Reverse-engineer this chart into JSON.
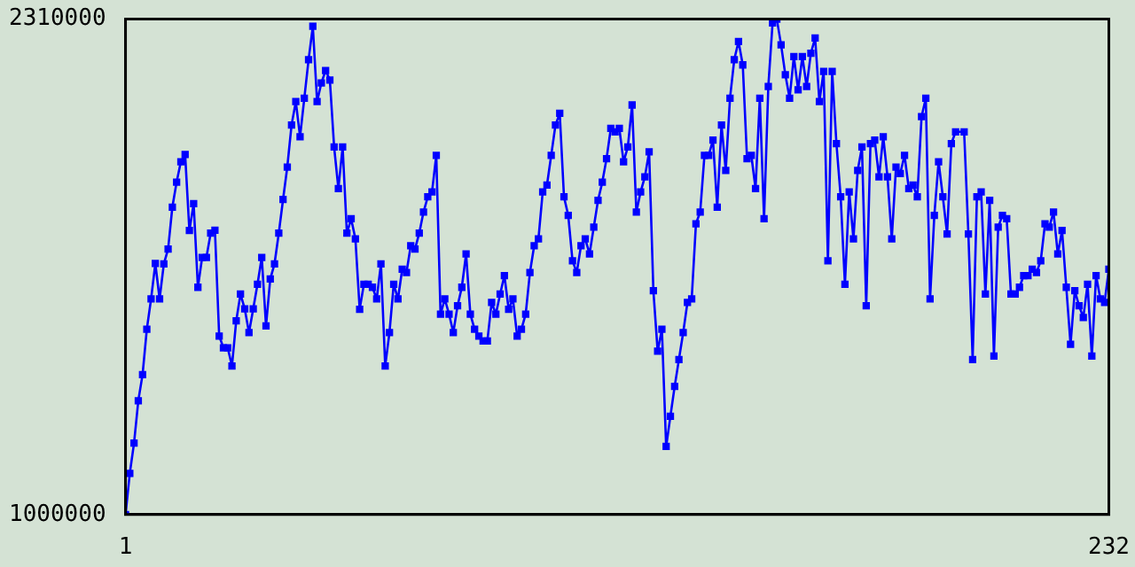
{
  "chart_data": {
    "type": "line",
    "marker": "square",
    "grid": false,
    "legend": false,
    "xlim": [
      1,
      232
    ],
    "xticks": [
      1,
      232
    ],
    "ylim": [
      1000000,
      2310000
    ],
    "yticks": [
      1000000,
      2310000
    ],
    "series": [
      {
        "color": "#0000ff",
        "x": [
          1,
          2,
          3,
          4,
          5,
          6,
          7,
          8,
          9,
          10,
          11,
          12,
          13,
          14,
          15,
          16,
          17,
          18,
          19,
          20,
          21,
          22,
          23,
          24,
          25,
          26,
          27,
          28,
          29,
          30,
          31,
          32,
          33,
          34,
          35,
          36,
          37,
          38,
          39,
          40,
          41,
          42,
          43,
          44,
          45,
          46,
          47,
          48,
          49,
          50,
          51,
          52,
          53,
          54,
          55,
          56,
          57,
          58,
          59,
          60,
          61,
          62,
          63,
          64,
          65,
          66,
          67,
          68,
          69,
          70,
          71,
          72,
          73,
          74,
          75,
          76,
          77,
          78,
          79,
          80,
          81,
          82,
          83,
          84,
          85,
          86,
          87,
          88,
          89,
          90,
          91,
          92,
          93,
          94,
          95,
          96,
          97,
          98,
          99,
          100,
          101,
          102,
          103,
          104,
          105,
          106,
          107,
          108,
          109,
          110,
          111,
          112,
          113,
          114,
          115,
          116,
          117,
          118,
          119,
          120,
          121,
          122,
          123,
          124,
          125,
          126,
          127,
          128,
          129,
          130,
          131,
          132,
          133,
          134,
          135,
          136,
          137,
          138,
          139,
          140,
          141,
          142,
          143,
          144,
          145,
          146,
          147,
          148,
          149,
          150,
          151,
          152,
          153,
          154,
          155,
          156,
          157,
          158,
          159,
          160,
          161,
          162,
          163,
          164,
          165,
          166,
          167,
          168,
          169,
          170,
          171,
          172,
          173,
          174,
          175,
          176,
          177,
          178,
          179,
          180,
          181,
          182,
          183,
          184,
          185,
          186,
          187,
          188,
          189,
          190,
          191,
          192,
          193,
          194,
          195,
          196,
          198,
          199,
          200,
          201,
          202,
          203,
          204,
          205,
          206,
          207,
          208,
          209,
          210,
          211,
          212,
          213,
          214,
          215,
          216,
          217,
          218,
          219,
          220,
          221,
          222,
          223,
          224,
          225,
          226,
          227,
          228,
          229,
          230,
          231,
          232
        ],
        "values": [
          1000000,
          1109000,
          1189000,
          1301000,
          1370000,
          1490000,
          1570000,
          1664000,
          1570000,
          1663000,
          1702000,
          1813000,
          1879000,
          1933000,
          1952000,
          1751000,
          1822000,
          1601000,
          1680000,
          1680000,
          1744000,
          1752000,
          1472000,
          1441000,
          1441000,
          1393000,
          1512000,
          1583000,
          1544000,
          1481000,
          1544000,
          1609000,
          1680000,
          1499000,
          1623000,
          1663000,
          1744000,
          1833000,
          1919000,
          2030000,
          2092000,
          1999000,
          2101000,
          2203000,
          2291000,
          2092000,
          2141000,
          2174000,
          2149000,
          1972000,
          1862000,
          1972000,
          1744000,
          1782000,
          1729000,
          1543000,
          1609000,
          1609000,
          1601000,
          1570000,
          1663000,
          1393000,
          1481000,
          1609000,
          1570000,
          1649000,
          1640000,
          1711000,
          1702000,
          1744000,
          1800000,
          1840000,
          1853000,
          1950000,
          1530000,
          1570000,
          1530000,
          1481000,
          1552000,
          1601000,
          1689000,
          1530000,
          1490000,
          1472000,
          1459000,
          1459000,
          1561000,
          1530000,
          1583000,
          1632000,
          1543000,
          1570000,
          1472000,
          1490000,
          1530000,
          1640000,
          1711000,
          1729000,
          1853000,
          1871000,
          1950000,
          2030000,
          2061000,
          1840000,
          1791000,
          1671000,
          1640000,
          1711000,
          1729000,
          1689000,
          1760000,
          1831000,
          1879000,
          1941000,
          2021000,
          2012000,
          2021000,
          1933000,
          1972000,
          2083000,
          1800000,
          1853000,
          1893000,
          1959000,
          1592000,
          1432000,
          1490000,
          1180000,
          1260000,
          1339000,
          1410000,
          1481000,
          1561000,
          1570000,
          1769000,
          1800000,
          1950000,
          1950000,
          1990000,
          1813000,
          2030000,
          1910000,
          2101000,
          2203000,
          2251000,
          2189000,
          1941000,
          1950000,
          1862000,
          2101000,
          1782000,
          2132000,
          2300000,
          2310000,
          2242000,
          2163000,
          2101000,
          2211000,
          2123000,
          2211000,
          2132000,
          2220000,
          2260000,
          2092000,
          2172000,
          1671000,
          2172000,
          1981000,
          1840000,
          1609000,
          1853000,
          1729000,
          1910000,
          1972000,
          1552000,
          1981000,
          1990000,
          1893000,
          1999000,
          1893000,
          1729000,
          1919000,
          1902000,
          1950000,
          1862000,
          1871000,
          1840000,
          2052000,
          2101000,
          1570000,
          1791000,
          1933000,
          1840000,
          1742000,
          1981000,
          2012000,
          2012000,
          1742000,
          1410000,
          1840000,
          1853000,
          1583000,
          1831000,
          1419000,
          1760000,
          1791000,
          1782000,
          1583000,
          1583000,
          1601000,
          1632000,
          1632000,
          1649000,
          1640000,
          1671000,
          1769000,
          1760000,
          1800000,
          1689000,
          1751000,
          1601000,
          1450000,
          1592000,
          1552000,
          1521000,
          1609000,
          1419000,
          1632000,
          1570000,
          1561000,
          1649000
        ]
      }
    ]
  }
}
